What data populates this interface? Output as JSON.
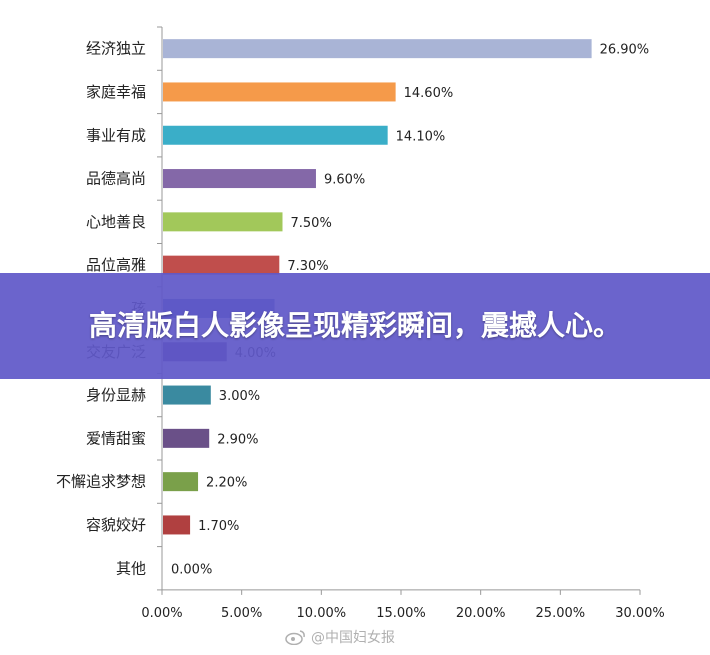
{
  "banner": {
    "text": "高清版白人影像呈现精彩瞬间，震撼人心。"
  },
  "watermark": {
    "text": "@中国妇女报",
    "icon": "weibo-icon"
  },
  "chart_data": {
    "type": "bar",
    "orientation": "horizontal",
    "categories": [
      "经济独立",
      "家庭幸福",
      "事业有成",
      "品德高尚",
      "心地善良",
      "品位高雅",
      "孩",
      "交友广泛",
      "身份显赫",
      "爱情甜蜜",
      "不懈追求梦想",
      "容貌姣好",
      "其他"
    ],
    "values": [
      26.9,
      14.6,
      14.1,
      9.6,
      7.5,
      7.3,
      7.0,
      4.0,
      3.0,
      2.9,
      2.2,
      1.7,
      0.0
    ],
    "value_labels": [
      "26.90%",
      "14.60%",
      "14.10%",
      "9.60%",
      "7.50%",
      "7.30%",
      "",
      "4.00%",
      "3.00%",
      "2.90%",
      "2.20%",
      "1.70%",
      "0.00%"
    ],
    "colors": [
      "#a9b4d6",
      "#f59a4a",
      "#3aaec8",
      "#8468a8",
      "#a2c85a",
      "#c04e4c",
      "#4a60b8",
      "#5a3a8c",
      "#3a8aa0",
      "#6a5088",
      "#7aa04a",
      "#b04040",
      "#888888"
    ],
    "xlim": [
      0,
      30
    ],
    "xticks": [
      "0.00%",
      "5.00%",
      "10.00%",
      "15.00%",
      "20.00%",
      "25.00%",
      "30.00%"
    ],
    "xtick_values": [
      0,
      5,
      10,
      15,
      20,
      25,
      30
    ],
    "title": "",
    "xlabel": "",
    "ylabel": "",
    "grid": false,
    "legend": "none"
  }
}
